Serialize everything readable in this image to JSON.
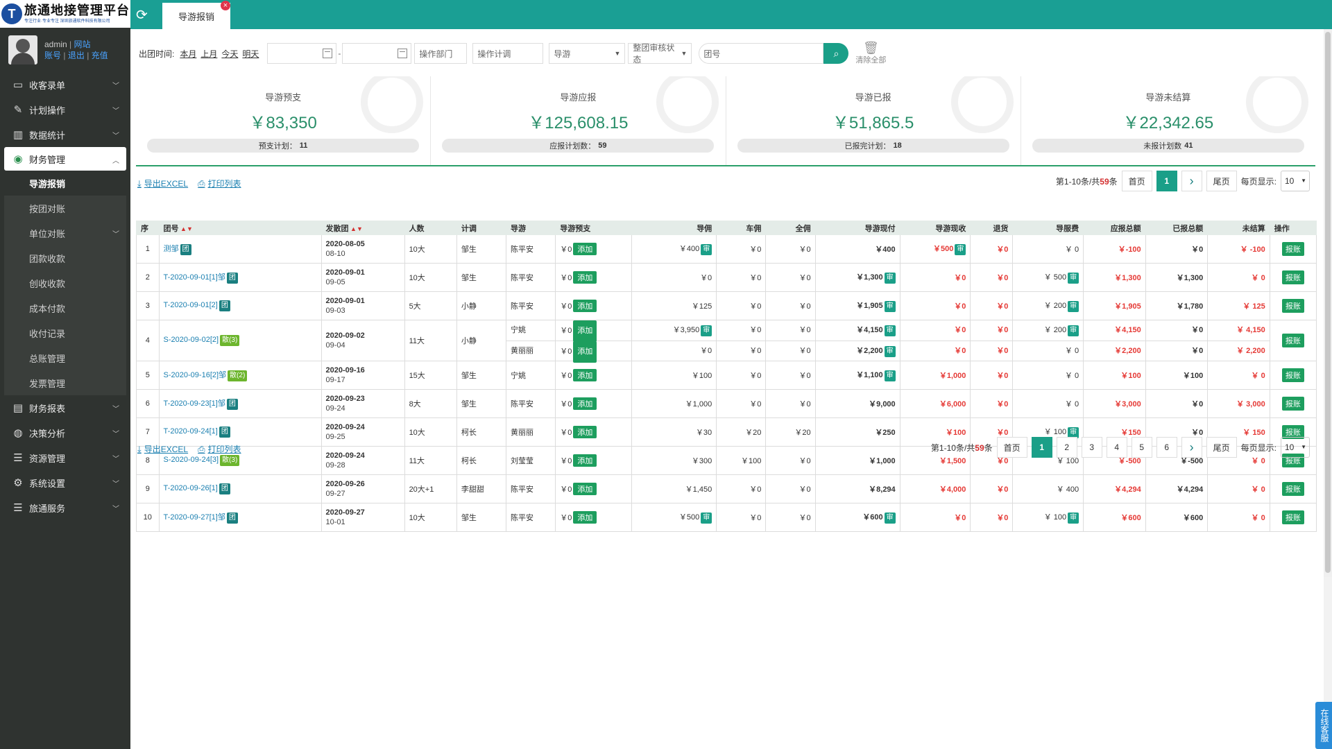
{
  "logo": {
    "title": "旅通地接管理平台",
    "slogan": "专注行业·专业专注 深圳旅通软件科技有限公司",
    "mark": "T"
  },
  "user": {
    "name": "admin",
    "site": "网站",
    "account": "账号",
    "logout": "退出",
    "recharge": "充值"
  },
  "menu": [
    {
      "label": "收客录单",
      "icon": "monitor-icon"
    },
    {
      "label": "计划操作",
      "icon": "edit-icon"
    },
    {
      "label": "数据统计",
      "icon": "chart-icon"
    },
    {
      "label": "财务管理",
      "icon": "coins-icon"
    },
    {
      "label": "财务报表",
      "icon": "report-icon"
    },
    {
      "label": "决策分析",
      "icon": "globe-icon"
    },
    {
      "label": "资源管理",
      "icon": "list-icon"
    },
    {
      "label": "系统设置",
      "icon": "gear-icon"
    },
    {
      "label": "旅通服务",
      "icon": "list-icon"
    }
  ],
  "submenu": [
    "导游报销",
    "按团对账",
    "单位对账",
    "团款收款",
    "创收收款",
    "成本付款",
    "收付记录",
    "总账管理",
    "发票管理"
  ],
  "tab": {
    "label": "导游报销"
  },
  "filters": {
    "date_label": "出团时间:",
    "quick": [
      "本月",
      "上月",
      "今天",
      "明天"
    ],
    "dept_placeholder": "操作部门",
    "planner_placeholder": "操作计调",
    "guide_select": "导游",
    "audit_select": "整团审核状态",
    "tour_placeholder": "团号",
    "clear_label": "清除全部"
  },
  "stats": [
    {
      "title": "导游预支",
      "value": "￥83,350",
      "sub_label": "预支计划：",
      "sub_value": "11"
    },
    {
      "title": "导游应报",
      "value": "￥125,608.15",
      "sub_label": "应报计划数：",
      "sub_value": "59"
    },
    {
      "title": "导游已报",
      "value": "￥51,865.5",
      "sub_label": "已报完计划：",
      "sub_value": "18"
    },
    {
      "title": "导游未结算",
      "value": "￥22,342.65",
      "sub_label": "未报计划数",
      "sub_value": "41"
    }
  ],
  "tools": {
    "export": "导出EXCEL",
    "print": "打印列表"
  },
  "pager_top": {
    "info_pre": "第1-10条/共",
    "total": "59",
    "info_post": "条",
    "first": "首页",
    "pages": [
      "1"
    ],
    "last": "尾页",
    "per_label": "每页显示:",
    "per": "10"
  },
  "pager_bottom": {
    "info_pre": "第1-10条/共",
    "total": "59",
    "info_post": "条",
    "first": "首页",
    "pages": [
      "1",
      "2",
      "3",
      "4",
      "5",
      "6"
    ],
    "last": "尾页",
    "per_label": "每页显示:",
    "per": "10"
  },
  "columns": [
    "序",
    "团号",
    "发散团",
    "人数",
    "计调",
    "导游",
    "导游预支",
    "导佣",
    "车佣",
    "全佣",
    "导游现付",
    "导游现收",
    "退货",
    "导服费",
    "应报总额",
    "已报总额",
    "未结算",
    "操作"
  ],
  "labels": {
    "add": "添加",
    "audit": "审",
    "reimburse": "报账",
    "group_tag": "团"
  },
  "rows": [
    {
      "no": "1",
      "tour": "测邹",
      "tag": "团",
      "tagType": "dark",
      "d1": "2020-08-05",
      "d2": "08-10",
      "people": "10大",
      "planner": "邹生",
      "subs": [
        {
          "guide": "陈平安",
          "adv": "￥0",
          "gc": "￥400",
          "gcA": true,
          "cc": "￥0",
          "qc": "￥0",
          "pay": "￥400",
          "payA": false,
          "rec": "￥500",
          "recA": true,
          "ret": "￥0",
          "fee": "￥ 0",
          "feeA": false,
          "due": "￥-100",
          "done": "￥0",
          "open": "￥ -100"
        }
      ]
    },
    {
      "no": "2",
      "tour": "T-2020-09-01[1]邹",
      "tag": "团",
      "tagType": "dark",
      "d1": "2020-09-01",
      "d2": "09-05",
      "people": "10大",
      "planner": "邹生",
      "subs": [
        {
          "guide": "陈平安",
          "adv": "￥0",
          "gc": "￥0",
          "gcA": false,
          "cc": "￥0",
          "qc": "￥0",
          "pay": "￥1,300",
          "payA": true,
          "rec": "￥0",
          "recA": false,
          "ret": "￥0",
          "fee": "￥ 500",
          "feeA": true,
          "due": "￥1,300",
          "done": "￥1,300",
          "open": "￥ 0"
        }
      ]
    },
    {
      "no": "3",
      "tour": "T-2020-09-01[2]",
      "tag": "团",
      "tagType": "dark",
      "d1": "2020-09-01",
      "d2": "09-03",
      "people": "5大",
      "planner": "小静",
      "subs": [
        {
          "guide": "陈平安",
          "adv": "￥0",
          "gc": "￥125",
          "gcA": false,
          "cc": "￥0",
          "qc": "￥0",
          "pay": "￥1,905",
          "payA": true,
          "rec": "￥0",
          "recA": false,
          "ret": "￥0",
          "fee": "￥ 200",
          "feeA": true,
          "due": "￥1,905",
          "done": "￥1,780",
          "open": "￥ 125"
        }
      ]
    },
    {
      "no": "4",
      "tour": "S-2020-09-02[2]",
      "tag": "散(3)",
      "tagType": "lime",
      "d1": "2020-09-02",
      "d2": "09-04",
      "people": "11大",
      "planner": "小静",
      "subs": [
        {
          "guide": "宁姚",
          "adv": "￥0",
          "gc": "￥3,950",
          "gcA": true,
          "cc": "￥0",
          "qc": "￥0",
          "pay": "￥4,150",
          "payA": true,
          "rec": "￥0",
          "recA": false,
          "ret": "￥0",
          "fee": "￥ 200",
          "feeA": true,
          "due": "￥4,150",
          "done": "￥0",
          "open": "￥ 4,150"
        },
        {
          "guide": "黄丽丽",
          "adv": "￥0",
          "gc": "￥0",
          "gcA": false,
          "cc": "￥0",
          "qc": "￥0",
          "pay": "￥2,200",
          "payA": true,
          "rec": "￥0",
          "recA": false,
          "ret": "￥0",
          "fee": "￥ 0",
          "feeA": false,
          "due": "￥2,200",
          "done": "￥0",
          "open": "￥ 2,200"
        }
      ]
    },
    {
      "no": "5",
      "tour": "S-2020-09-16[2]邹",
      "tag": "散(2)",
      "tagType": "lime",
      "d1": "2020-09-16",
      "d2": "09-17",
      "people": "15大",
      "planner": "邹生",
      "subs": [
        {
          "guide": "宁姚",
          "adv": "￥0",
          "gc": "￥100",
          "gcA": false,
          "cc": "￥0",
          "qc": "￥0",
          "pay": "￥1,100",
          "payA": true,
          "rec": "￥1,000",
          "recA": false,
          "ret": "￥0",
          "fee": "￥ 0",
          "feeA": false,
          "due": "￥100",
          "done": "￥100",
          "open": "￥ 0"
        }
      ]
    },
    {
      "no": "6",
      "tour": "T-2020-09-23[1]邹",
      "tag": "团",
      "tagType": "dark",
      "d1": "2020-09-23",
      "d2": "09-24",
      "people": "8大",
      "planner": "邹生",
      "subs": [
        {
          "guide": "陈平安",
          "adv": "￥0",
          "gc": "￥1,000",
          "gcA": false,
          "cc": "￥0",
          "qc": "￥0",
          "pay": "￥9,000",
          "payA": false,
          "rec": "￥6,000",
          "recA": false,
          "ret": "￥0",
          "fee": "￥ 0",
          "feeA": false,
          "due": "￥3,000",
          "done": "￥0",
          "open": "￥ 3,000"
        }
      ]
    },
    {
      "no": "7",
      "tour": "T-2020-09-24[1]",
      "tag": "团",
      "tagType": "dark",
      "d1": "2020-09-24",
      "d2": "09-25",
      "people": "10大",
      "planner": "柯长",
      "subs": [
        {
          "guide": "黄丽丽",
          "adv": "￥0",
          "gc": "￥30",
          "gcA": false,
          "cc": "￥20",
          "qc": "￥20",
          "pay": "￥250",
          "payA": false,
          "rec": "￥100",
          "recA": false,
          "ret": "￥0",
          "fee": "￥ 100",
          "feeA": true,
          "due": "￥150",
          "done": "￥0",
          "open": "￥ 150"
        }
      ]
    },
    {
      "no": "8",
      "tour": "S-2020-09-24[3]",
      "tag": "散(3)",
      "tagType": "lime",
      "d1": "2020-09-24",
      "d2": "09-28",
      "people": "11大",
      "planner": "柯长",
      "subs": [
        {
          "guide": "刘莹莹",
          "adv": "￥0",
          "gc": "￥300",
          "gcA": false,
          "cc": "￥100",
          "qc": "￥0",
          "pay": "￥1,000",
          "payA": false,
          "rec": "￥1,500",
          "recA": false,
          "ret": "￥0",
          "fee": "￥ 100",
          "feeA": false,
          "due": "￥-500",
          "done": "￥-500",
          "open": "￥ 0"
        }
      ]
    },
    {
      "no": "9",
      "tour": "T-2020-09-26[1]",
      "tag": "团",
      "tagType": "dark",
      "d1": "2020-09-26",
      "d2": "09-27",
      "people": "20大+1",
      "planner": "李甜甜",
      "subs": [
        {
          "guide": "陈平安",
          "adv": "￥0",
          "gc": "￥1,450",
          "gcA": false,
          "cc": "￥0",
          "qc": "￥0",
          "pay": "￥8,294",
          "payA": false,
          "rec": "￥4,000",
          "recA": false,
          "ret": "￥0",
          "fee": "￥ 400",
          "feeA": false,
          "due": "￥4,294",
          "done": "￥4,294",
          "open": "￥ 0"
        }
      ]
    },
    {
      "no": "10",
      "tour": "T-2020-09-27[1]邹",
      "tag": "团",
      "tagType": "dark",
      "d1": "2020-09-27",
      "d2": "10-01",
      "people": "10大",
      "planner": "邹生",
      "subs": [
        {
          "guide": "陈平安",
          "adv": "￥0",
          "gc": "￥500",
          "gcA": true,
          "cc": "￥0",
          "qc": "￥0",
          "pay": "￥600",
          "payA": true,
          "rec": "￥0",
          "recA": false,
          "ret": "￥0",
          "fee": "￥ 100",
          "feeA": true,
          "due": "￥600",
          "done": "￥600",
          "open": "￥ 0"
        }
      ]
    }
  ],
  "chat": "在线客服"
}
